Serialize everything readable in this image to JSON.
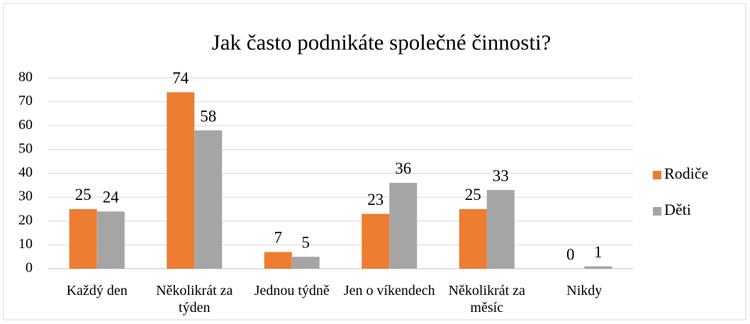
{
  "chart_data": {
    "type": "bar",
    "title": "Jak často podnikáte společné činnosti?",
    "categories": [
      "Každý den",
      "Několikrát za týden",
      "Jednou týdně",
      "Jen o víkendech",
      "Několikrát za měsíc",
      "Nikdy"
    ],
    "series": [
      {
        "name": "Rodiče",
        "color": "#ed7d31",
        "values": [
          25,
          74,
          7,
          23,
          25,
          0
        ]
      },
      {
        "name": "Děti",
        "color": "#a5a5a5",
        "values": [
          24,
          58,
          5,
          36,
          33,
          1
        ]
      }
    ],
    "ylim": [
      0,
      80
    ],
    "yticks": [
      0,
      10,
      20,
      30,
      40,
      50,
      60,
      70,
      80
    ],
    "grid": true,
    "legend": "right"
  }
}
